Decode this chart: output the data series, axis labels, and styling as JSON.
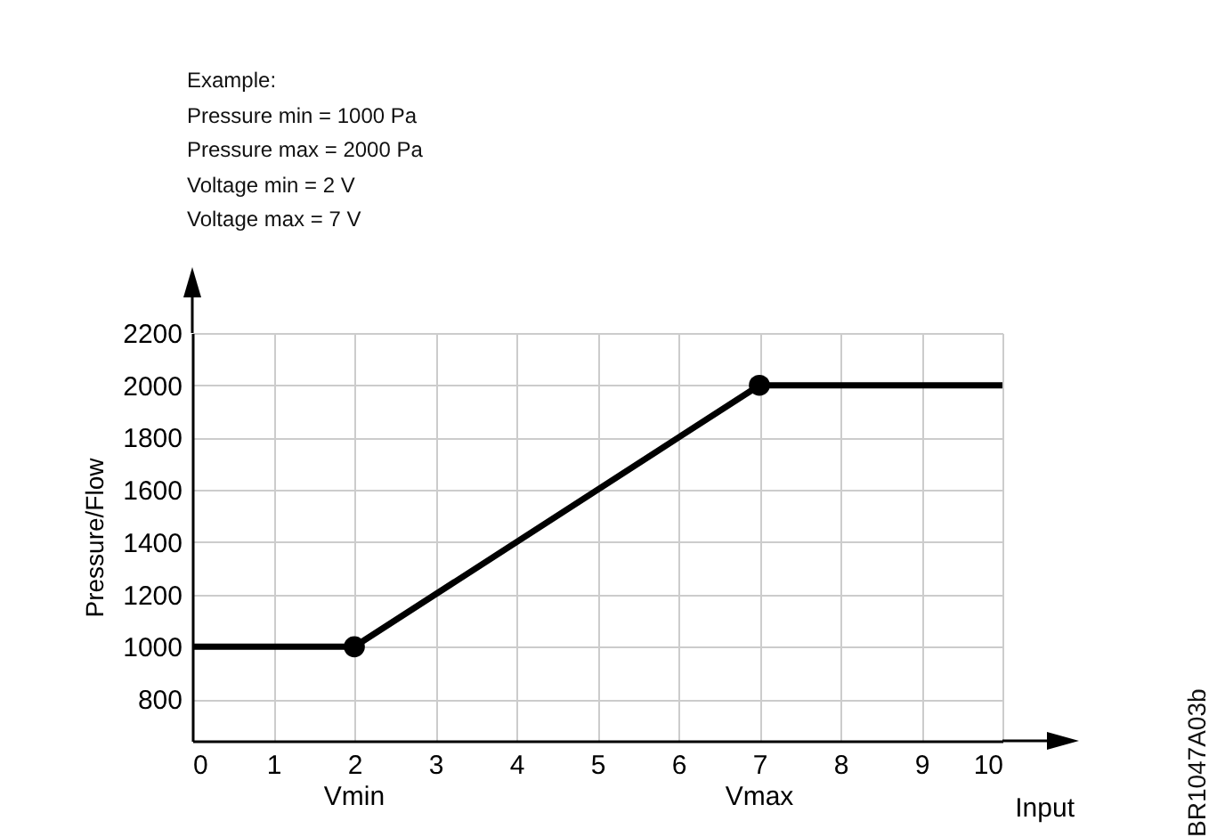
{
  "chart_data": {
    "type": "line",
    "xlabel": "Input",
    "ylabel": "Pressure/Flow",
    "xlim": [
      0,
      10
    ],
    "xticks": [
      0,
      1,
      2,
      3,
      4,
      5,
      6,
      7,
      8,
      9,
      10
    ],
    "ylim": [
      640,
      2200
    ],
    "yticks": [
      800,
      1000,
      1200,
      1400,
      1600,
      1800,
      2000,
      2200
    ],
    "grid": true,
    "series": [
      {
        "type": "line",
        "color": "#000000",
        "marker": "none",
        "x": [
          0,
          2,
          7,
          10
        ],
        "values": [
          1000,
          1000,
          2000,
          2000
        ]
      },
      {
        "type": "scatter",
        "color": "#000000",
        "marker": "circle",
        "x": [
          2,
          7
        ],
        "values": [
          1000,
          2000
        ]
      }
    ],
    "annotations": [
      "Example:",
      "Pressure min = 1000 Pa",
      "Pressure max = 2000 Pa",
      "Voltage min = 2 V",
      "Voltage max = 7 V",
      "Vmin",
      "Vmax",
      "BR1047A03b"
    ]
  }
}
